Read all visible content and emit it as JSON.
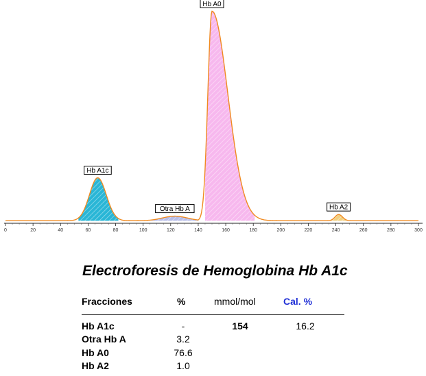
{
  "chart_data": {
    "type": "area",
    "title": "",
    "xlabel": "",
    "ylabel": "",
    "xlim": [
      0,
      300
    ],
    "ylim": [
      0,
      100
    ],
    "x_ticks": [
      0,
      20,
      40,
      60,
      80,
      100,
      120,
      140,
      160,
      180,
      200,
      220,
      240,
      260,
      280,
      300
    ],
    "grid": false,
    "peaks": [
      {
        "name": "Hb A1c",
        "center": 67,
        "height": 20.5,
        "fill_range": [
          53,
          82
        ],
        "color": "#29b6d6"
      },
      {
        "name": "Otra Hb A",
        "center": 123,
        "height": 2.2,
        "fill_range": [
          106,
          140
        ],
        "color": "#b7bde8"
      },
      {
        "name": "Hb A0",
        "center": 150,
        "height": 100,
        "fill_range": [
          145,
          181
        ],
        "color": "#f7b8ee"
      },
      {
        "name": "Hb A2",
        "center": 242,
        "height": 3.0,
        "fill_range": [
          235,
          248
        ],
        "color": "#f2d080"
      }
    ],
    "curve_color": "#f08a20",
    "baseline": 1.2
  },
  "report": {
    "title": "Electroforesis de Hemoglobina Hb A1c",
    "headers": {
      "fracciones": "Fracciones",
      "pct": "%",
      "mmol": "mmol/mol",
      "cal": "Cal. %"
    },
    "rows": [
      {
        "name": "Hb A1c",
        "pct": "-",
        "mmol": "154",
        "cal": "16.2"
      },
      {
        "name": "Otra Hb A",
        "pct": "3.2",
        "mmol": "",
        "cal": ""
      },
      {
        "name": "Hb A0",
        "pct": "76.6",
        "mmol": "",
        "cal": ""
      },
      {
        "name": "Hb A2",
        "pct": "1.0",
        "mmol": "",
        "cal": ""
      }
    ]
  }
}
